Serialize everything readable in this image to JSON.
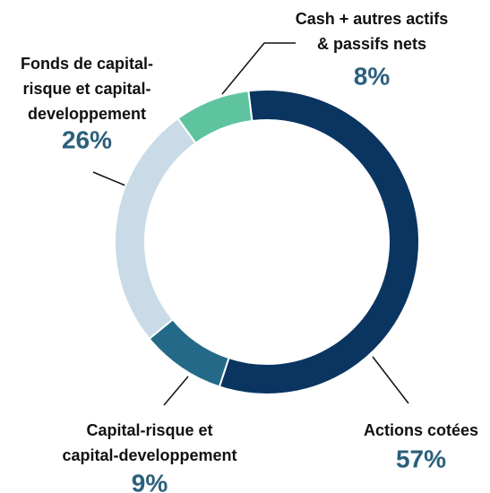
{
  "chart_data": {
    "type": "donut",
    "categories": [
      [
        "Actions cotées"
      ],
      [
        "Capital-risque et",
        "capital-developpement"
      ],
      [
        "Fonds de capital-",
        "risque et capital-",
        "developpement"
      ],
      [
        "Cash + autres actifs",
        "& passifs nets"
      ]
    ],
    "values": [
      57,
      9,
      26,
      8
    ],
    "value_labels": [
      "57%",
      "9%",
      "26%",
      "8%"
    ],
    "colors": [
      "#0a3561",
      "#246a88",
      "#c9dbe6",
      "#5ec4a0"
    ]
  }
}
